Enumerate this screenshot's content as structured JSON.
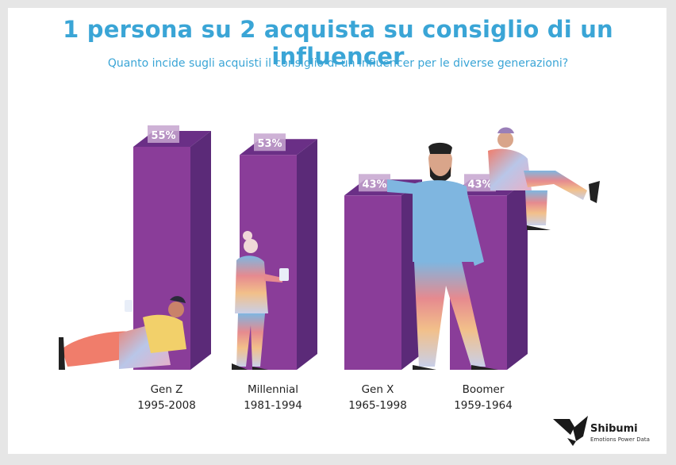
{
  "title": "1 persona su 2 acquista su consiglio di un influencer",
  "subtitle": "Quanto incide sugli acquisti  il consiglio di un influencer  per le diverse generazioni?",
  "chart_data": {
    "type": "bar",
    "categories": [
      "Gen Z",
      "Millennial",
      "Gen X",
      "Boomer"
    ],
    "category_years": [
      "1995-2008",
      "1981-1994",
      "1965-1998",
      "1959-1964"
    ],
    "values": [
      55,
      53,
      43,
      43
    ],
    "value_labels": [
      "55%",
      "53%",
      "43%",
      "43%"
    ],
    "unit": "%",
    "ylim": [
      0,
      60
    ],
    "grid": false,
    "bar_style": "3d",
    "colors": {
      "bar_front": "#8a3d99",
      "bar_side": "#5b2a78",
      "bar_top": "#6a2f86",
      "label_bg": "#c5a4cf"
    }
  },
  "brand": {
    "name": "Shibumi",
    "tagline": "Emotions Power Data",
    "icon": "shibumi-logo-icon"
  },
  "colors": {
    "title": "#3aa5d6",
    "background": "#ffffff",
    "frame": "#e6e6e6"
  }
}
